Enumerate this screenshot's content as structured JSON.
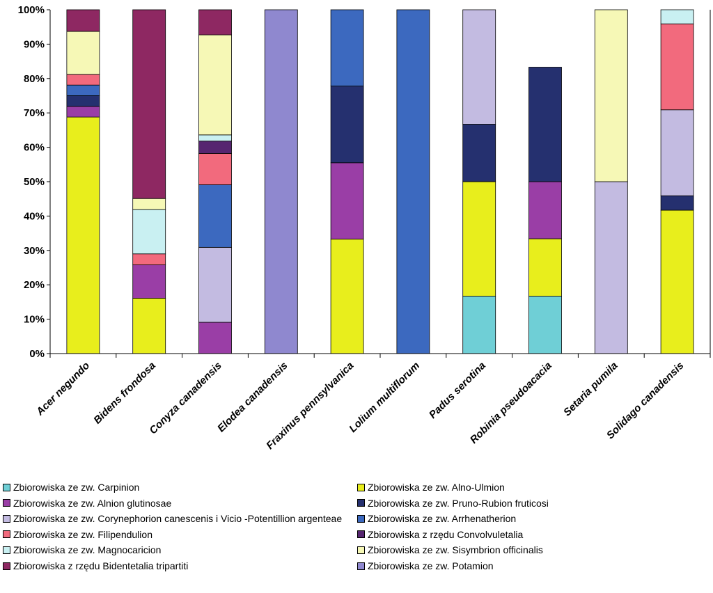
{
  "chart_data": {
    "type": "bar",
    "stacked": "percent",
    "title": "",
    "xlabel": "",
    "ylabel": "",
    "ylim": [
      0,
      100
    ],
    "yticks": [
      "0%",
      "10%",
      "20%",
      "30%",
      "40%",
      "50%",
      "60%",
      "70%",
      "80%",
      "90%",
      "100%"
    ],
    "grid": false,
    "legend_position": "bottom",
    "categories": [
      "Acer negundo",
      "Bidens frondosa",
      "Conyza canadensis",
      "Elodea canadensis",
      "Fraxinus pennsylvanica",
      "Lolium multiflorum",
      "Padus serotina",
      "Robinia pseudoacacia",
      "Setaria pumila",
      "Solidago canadensis"
    ],
    "series": [
      {
        "name": "Zbiorowiska ze zw. Carpinion",
        "color": "#6fcfd6",
        "values": [
          0,
          0,
          0,
          0,
          0,
          0,
          16.7,
          16.7,
          0,
          0
        ]
      },
      {
        "name": "Zbiorowiska ze zw. Alno-Ulmion",
        "color": "#e8ee1c",
        "values": [
          68.8,
          16.1,
          0,
          0,
          33.3,
          0,
          33.3,
          16.7,
          0,
          41.7
        ]
      },
      {
        "name": "Zbiorowiska ze zw. Alnion glutinosae",
        "color": "#9a3ea6",
        "values": [
          3.1,
          9.7,
          9.1,
          0,
          22.2,
          0,
          0,
          16.6,
          0,
          0
        ]
      },
      {
        "name": "Zbiorowiska ze zw. Pruno-Rubion fruticosi",
        "color": "#25306f",
        "values": [
          3.1,
          0,
          0,
          0,
          22.3,
          0,
          16.7,
          33.3,
          0,
          4.2
        ]
      },
      {
        "name": "Zbiorowiska ze zw. Corynephorion canescenis i Vicio -Potentillion argenteae",
        "color": "#c3bbe1",
        "values": [
          0,
          0,
          21.8,
          0,
          0,
          0,
          33.3,
          0,
          50,
          25
        ]
      },
      {
        "name": "Zbiorowiska ze zw. Arrhenatherion",
        "color": "#3c69bf",
        "values": [
          3.1,
          0,
          18.2,
          0,
          22.2,
          100,
          0,
          0,
          0,
          0
        ]
      },
      {
        "name": "Zbiorowiska ze zw. Filipendulion",
        "color": "#f26a7d",
        "values": [
          3.1,
          3.2,
          9.1,
          0,
          0,
          0,
          0,
          0,
          0,
          25
        ]
      },
      {
        "name": "Zbiorowiska z rzędu Convolvuletalia",
        "color": "#562570",
        "values": [
          0,
          0,
          3.6,
          0,
          0,
          0,
          0,
          0,
          0,
          0
        ]
      },
      {
        "name": "Zbiorowiska ze zw. Magnocaricion",
        "color": "#c9f0f2",
        "values": [
          0,
          12.9,
          1.8,
          0,
          0,
          0,
          0,
          0,
          0,
          4.1
        ]
      },
      {
        "name": "Zbiorowiska ze zw. Sisymbrion officinalis",
        "color": "#f6f8b6",
        "values": [
          12.5,
          3.2,
          29.1,
          0,
          0,
          0,
          0,
          0,
          50,
          0
        ]
      },
      {
        "name": "Zbiorowiska z rzędu Bidentetalia tripartiti",
        "color": "#8e2862",
        "values": [
          6.3,
          54.9,
          7.3,
          0,
          0,
          0,
          0,
          0,
          0,
          0
        ]
      },
      {
        "name": "Zbiorowiska ze zw. Potamion",
        "color": "#8f88cf",
        "values": [
          0,
          0,
          0,
          100,
          0,
          0,
          0,
          0,
          0,
          0
        ]
      }
    ],
    "legend_order": [
      "Zbiorowiska ze zw. Carpinion",
      "Zbiorowiska ze zw. Alno-Ulmion",
      "Zbiorowiska ze zw. Alnion glutinosae",
      "Zbiorowiska ze zw. Pruno-Rubion fruticosi",
      "Zbiorowiska ze zw. Corynephorion canescenis i Vicio -Potentillion argenteae",
      "Zbiorowiska ze zw. Arrhenatherion",
      "Zbiorowiska ze zw. Filipendulion",
      "Zbiorowiska z rzędu Convolvuletalia",
      "Zbiorowiska ze zw. Magnocaricion",
      "Zbiorowiska ze zw. Sisymbrion officinalis",
      "Zbiorowiska z rzędu Bidentetalia tripartiti",
      "Zbiorowiska ze zw. Potamion"
    ]
  }
}
